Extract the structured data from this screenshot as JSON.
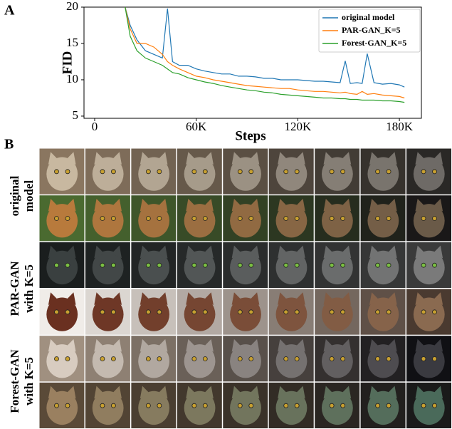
{
  "chart_data": {
    "type": "line",
    "x_label": "Steps",
    "y_label": "FID",
    "x": [
      18000,
      21000,
      25000,
      30000,
      35000,
      40000,
      43000,
      46000,
      50000,
      55000,
      60000,
      65000,
      70000,
      75000,
      80000,
      85000,
      90000,
      95000,
      100000,
      105000,
      110000,
      115000,
      120000,
      125000,
      130000,
      135000,
      140000,
      145000,
      148000,
      151000,
      155000,
      158000,
      161000,
      165000,
      170000,
      175000,
      180000,
      183000
    ],
    "series": [
      {
        "name": "original model",
        "color": "#1f77b4",
        "values": [
          20,
          17.5,
          15.5,
          14,
          13.5,
          13,
          19.8,
          12.5,
          12,
          12,
          11.5,
          11.2,
          11,
          10.8,
          10.8,
          10.5,
          10.5,
          10.4,
          10.2,
          10.2,
          10,
          10,
          10,
          9.9,
          9.8,
          9.8,
          9.7,
          9.6,
          12.6,
          9.5,
          9.6,
          9.5,
          13.6,
          9.6,
          9.4,
          9.5,
          9.3,
          9.0
        ]
      },
      {
        "name": "PAR-GAN_K=5",
        "color": "#ff7f0e",
        "values": [
          20,
          17,
          15,
          15,
          14.5,
          13.5,
          12.5,
          12,
          11.5,
          11,
          10.5,
          10.3,
          10,
          9.8,
          9.6,
          9.4,
          9.2,
          9.1,
          9,
          8.9,
          8.8,
          8.8,
          8.6,
          8.5,
          8.4,
          8.4,
          8.3,
          8.2,
          8.3,
          8.1,
          8.0,
          8.4,
          8.0,
          8.1,
          7.9,
          7.8,
          7.7,
          7.5
        ]
      },
      {
        "name": "Forest-GAN_K=5",
        "color": "#2ca02c",
        "values": [
          20,
          16,
          14,
          13,
          12.5,
          12,
          11.5,
          11,
          10.8,
          10.3,
          10,
          9.7,
          9.5,
          9.2,
          9,
          8.8,
          8.6,
          8.5,
          8.3,
          8.2,
          8,
          7.9,
          7.8,
          7.7,
          7.6,
          7.5,
          7.5,
          7.4,
          7.4,
          7.3,
          7.3,
          7.2,
          7.2,
          7.2,
          7.1,
          7.1,
          7.0,
          6.9
        ]
      }
    ],
    "xlim": [
      -6300,
      193000
    ],
    "xticks": [
      0,
      {
        "value": 60000,
        "label": "60K"
      },
      {
        "value": 120000,
        "label": "120K"
      },
      {
        "value": 180000,
        "label": "180K"
      }
    ],
    "ylim": [
      4.7,
      20
    ],
    "yticks": [
      5,
      10,
      15,
      20
    ],
    "legend": "upper right"
  },
  "figure": {
    "panel_labels": [
      "A",
      "B"
    ],
    "row_labels": [
      [
        "original",
        "model"
      ],
      [
        "PAR-GAN",
        "with K=5"
      ],
      [
        "Forest-GAN",
        "with K=5"
      ]
    ]
  }
}
